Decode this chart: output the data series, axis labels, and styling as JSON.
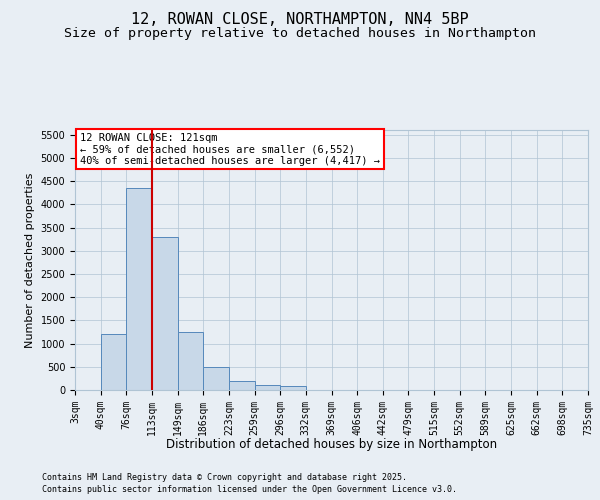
{
  "title_line1": "12, ROWAN CLOSE, NORTHAMPTON, NN4 5BP",
  "title_line2": "Size of property relative to detached houses in Northampton",
  "xlabel": "Distribution of detached houses by size in Northampton",
  "ylabel": "Number of detached properties",
  "footnote1": "Contains HM Land Registry data © Crown copyright and database right 2025.",
  "footnote2": "Contains public sector information licensed under the Open Government Licence v3.0.",
  "annotation_line1": "12 ROWAN CLOSE: 121sqm",
  "annotation_line2": "← 59% of detached houses are smaller (6,552)",
  "annotation_line3": "40% of semi-detached houses are larger (4,417) →",
  "bar_color": "#c8d8e8",
  "bar_edge_color": "#5588bb",
  "vline_color": "#cc0000",
  "vline_x": 3,
  "bins": [
    "3sqm",
    "40sqm",
    "76sqm",
    "113sqm",
    "149sqm",
    "186sqm",
    "223sqm",
    "259sqm",
    "296sqm",
    "332sqm",
    "369sqm",
    "406sqm",
    "442sqm",
    "479sqm",
    "515sqm",
    "552sqm",
    "589sqm",
    "625sqm",
    "662sqm",
    "698sqm",
    "735sqm"
  ],
  "values": [
    0,
    1200,
    4350,
    3300,
    1250,
    500,
    200,
    100,
    80,
    0,
    0,
    0,
    0,
    0,
    0,
    0,
    0,
    0,
    0,
    0
  ],
  "ylim": [
    0,
    5600
  ],
  "yticks": [
    0,
    500,
    1000,
    1500,
    2000,
    2500,
    3000,
    3500,
    4000,
    4500,
    5000,
    5500
  ],
  "background_color": "#e8eef4",
  "plot_background": "#e8eef4",
  "grid_color": "#b0c4d4",
  "title_fontsize": 11,
  "subtitle_fontsize": 9.5,
  "tick_fontsize": 7,
  "ylabel_fontsize": 8,
  "xlabel_fontsize": 8.5,
  "annot_fontsize": 7.5,
  "footnote_fontsize": 6
}
